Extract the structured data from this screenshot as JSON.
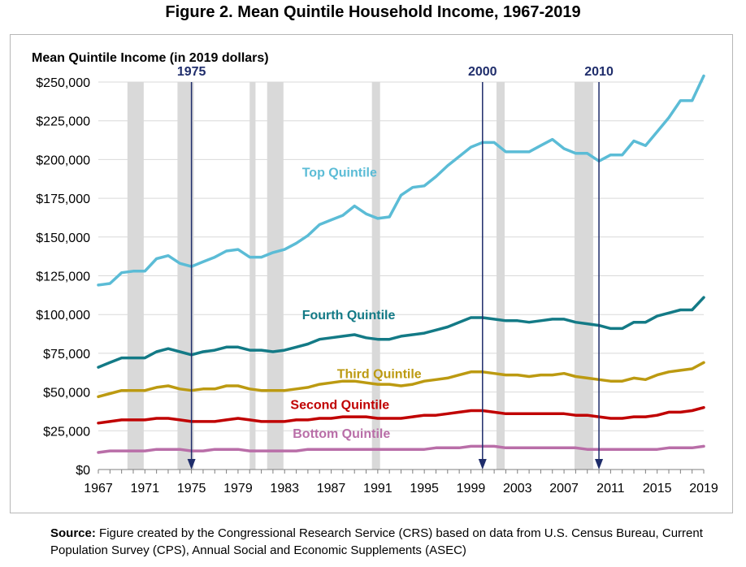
{
  "title": "Figure 2. Mean Quintile Household Income, 1967-2019",
  "source_label": "Source:",
  "source_text": "Figure created by the Congressional Research Service (CRS) based on data from U.S. Census Bureau, Current Population Survey (CPS), Annual Social and Economic Supplements (ASEC)",
  "chart_data": {
    "type": "line",
    "title": "Figure 2. Mean Quintile Household Income, 1967-2019",
    "ylabel": "Mean Quintile Income (in 2019 dollars)",
    "xlabel": "",
    "xlim": [
      1967,
      2019
    ],
    "ylim": [
      0,
      250000
    ],
    "x_ticks": [
      1967,
      1971,
      1975,
      1979,
      1983,
      1987,
      1991,
      1995,
      1999,
      2003,
      2007,
      2011,
      2015,
      2019
    ],
    "y_ticks": [
      0,
      25000,
      50000,
      75000,
      100000,
      125000,
      150000,
      175000,
      200000,
      225000,
      250000
    ],
    "y_tick_labels": [
      "$0",
      "$25,000",
      "$50,000",
      "$75,000",
      "$100,000",
      "$125,000",
      "$150,000",
      "$175,000",
      "$200,000",
      "$225,000",
      "$250,000"
    ],
    "grid": "horizontal",
    "recessions": [
      [
        1969.5,
        1970.9
      ],
      [
        1973.8,
        1975.2
      ],
      [
        1980.0,
        1980.5
      ],
      [
        1981.5,
        1982.9
      ],
      [
        1990.5,
        1991.2
      ],
      [
        2001.2,
        2001.9
      ],
      [
        2007.9,
        2009.5
      ]
    ],
    "markers": [
      {
        "year": 1975,
        "label": "1975"
      },
      {
        "year": 2000,
        "label": "2000"
      },
      {
        "year": 2010,
        "label": "2010"
      }
    ],
    "x": [
      1967,
      1968,
      1969,
      1970,
      1971,
      1972,
      1973,
      1974,
      1975,
      1976,
      1977,
      1978,
      1979,
      1980,
      1981,
      1982,
      1983,
      1984,
      1985,
      1986,
      1987,
      1988,
      1989,
      1990,
      1991,
      1992,
      1993,
      1994,
      1995,
      1996,
      1997,
      1998,
      1999,
      2000,
      2001,
      2002,
      2003,
      2004,
      2005,
      2006,
      2007,
      2008,
      2009,
      2010,
      2011,
      2012,
      2013,
      2014,
      2015,
      2016,
      2017,
      2018,
      2019
    ],
    "series": [
      {
        "name": "Top Quintile",
        "color": "#5bbcd6",
        "label_x": 1984.5,
        "label_y": 189000,
        "values": [
          119000,
          120000,
          127000,
          128000,
          128000,
          136000,
          138000,
          133000,
          131000,
          134000,
          137000,
          141000,
          142000,
          137000,
          137000,
          140000,
          142000,
          146000,
          151000,
          158000,
          161000,
          164000,
          170000,
          165000,
          162000,
          163000,
          177000,
          182000,
          183000,
          189000,
          196000,
          202000,
          208000,
          211000,
          211000,
          205000,
          205000,
          205000,
          209000,
          213000,
          207000,
          204000,
          204000,
          199000,
          203000,
          203000,
          212000,
          209000,
          218000,
          227000,
          238000,
          238000,
          254000
        ]
      },
      {
        "name": "Fourth Quintile",
        "color": "#137a86",
        "label_x": 1984.5,
        "label_y": 97000,
        "values": [
          66000,
          69000,
          72000,
          72000,
          72000,
          76000,
          78000,
          76000,
          74000,
          76000,
          77000,
          79000,
          79000,
          77000,
          77000,
          76000,
          77000,
          79000,
          81000,
          84000,
          85000,
          86000,
          87000,
          85000,
          84000,
          84000,
          86000,
          87000,
          88000,
          90000,
          92000,
          95000,
          98000,
          98000,
          97000,
          96000,
          96000,
          95000,
          96000,
          97000,
          97000,
          95000,
          94000,
          93000,
          91000,
          91000,
          95000,
          95000,
          99000,
          101000,
          103000,
          103000,
          111000
        ]
      },
      {
        "name": "Third Quintile",
        "color": "#bc9a11",
        "label_x": 1987.5,
        "label_y": 59000,
        "values": [
          47000,
          49000,
          51000,
          51000,
          51000,
          53000,
          54000,
          52000,
          51000,
          52000,
          52000,
          54000,
          54000,
          52000,
          51000,
          51000,
          51000,
          52000,
          53000,
          55000,
          56000,
          57000,
          57000,
          56000,
          55000,
          55000,
          54000,
          55000,
          57000,
          58000,
          59000,
          61000,
          63000,
          63000,
          62000,
          61000,
          61000,
          60000,
          61000,
          61000,
          62000,
          60000,
          59000,
          58000,
          57000,
          57000,
          59000,
          58000,
          61000,
          63000,
          64000,
          65000,
          69000
        ]
      },
      {
        "name": "Second Quintile",
        "color": "#c00000",
        "label_x": 1983.5,
        "label_y": 39000,
        "values": [
          30000,
          31000,
          32000,
          32000,
          32000,
          33000,
          33000,
          32000,
          31000,
          31000,
          31000,
          32000,
          33000,
          32000,
          31000,
          31000,
          31000,
          32000,
          32000,
          33000,
          33000,
          34000,
          34000,
          34000,
          33000,
          33000,
          33000,
          34000,
          35000,
          35000,
          36000,
          37000,
          38000,
          38000,
          37000,
          36000,
          36000,
          36000,
          36000,
          36000,
          36000,
          35000,
          35000,
          34000,
          33000,
          33000,
          34000,
          34000,
          35000,
          37000,
          37000,
          38000,
          40000
        ]
      },
      {
        "name": "Bottom Quintile",
        "color": "#b96ea8",
        "label_x": 1983.7,
        "label_y": 20500,
        "values": [
          11000,
          12000,
          12000,
          12000,
          12000,
          13000,
          13000,
          13000,
          12000,
          12000,
          13000,
          13000,
          13000,
          12000,
          12000,
          12000,
          12000,
          12000,
          13000,
          13000,
          13000,
          13000,
          13000,
          13000,
          13000,
          13000,
          13000,
          13000,
          13000,
          14000,
          14000,
          14000,
          15000,
          15000,
          15000,
          14000,
          14000,
          14000,
          14000,
          14000,
          14000,
          14000,
          13000,
          13000,
          13000,
          13000,
          13000,
          13000,
          13000,
          14000,
          14000,
          14000,
          15000
        ]
      }
    ]
  }
}
